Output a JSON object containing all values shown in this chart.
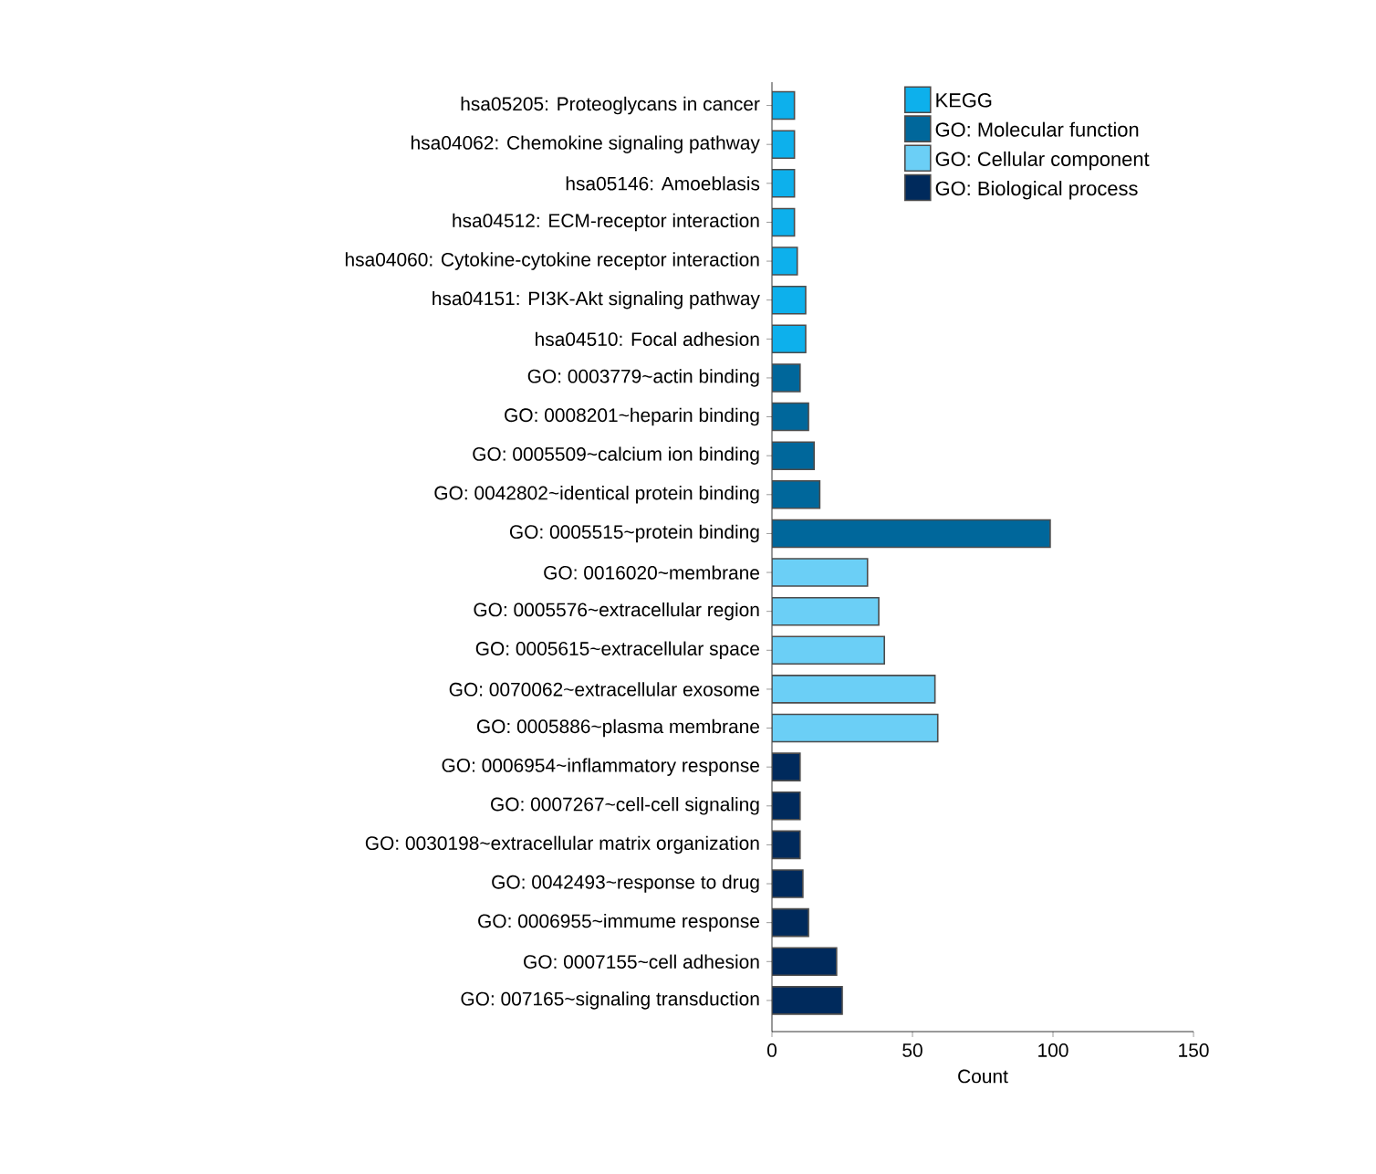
{
  "chart_data": {
    "type": "bar",
    "orientation": "horizontal",
    "xlabel": "Count",
    "xlim": [
      0,
      150
    ],
    "xticks": [
      0,
      50,
      100,
      150
    ],
    "legend": "top right",
    "grid": false,
    "categories": [
      "hsa05205: Proteoglycans in cancer",
      "hsa04062: Chemokine signaling pathway",
      "hsa05146: Amoeblasis",
      "hsa04512: ECM-receptor interaction",
      "hsa04060: Cytokine-cytokine receptor interaction",
      "hsa04151: PI3K-Akt signaling pathway",
      "hsa04510: Focal adhesion",
      "GO: 0003779~actin binding",
      "GO: 0008201~heparin binding",
      "GO: 0005509~calcium ion binding",
      "GO: 0042802~identical protein binding",
      "GO: 0005515~protein binding",
      "GO: 0016020~membrane",
      "GO: 0005576~extracellular region",
      "GO: 0005615~extracellular space",
      "GO: 0070062~extracellular exosome",
      "GO: 0005886~plasma membrane",
      "GO: 0006954~inflammatory response",
      "GO: 0007267~cell-cell signaling",
      "GO: 0030198~extracellular matrix organization",
      "GO: 0042493~response to drug",
      "GO: 0006955~immume response",
      "GO: 0007155~cell adhesion",
      "GO: 007165~signaling transduction"
    ],
    "series": [
      {
        "name": "KEGG",
        "color": "#0db0ec",
        "values": [
          8,
          8,
          8,
          8,
          9,
          12,
          12,
          null,
          null,
          null,
          null,
          null,
          null,
          null,
          null,
          null,
          null,
          null,
          null,
          null,
          null,
          null,
          null,
          null
        ]
      },
      {
        "name": "GO: Molecular function",
        "color": "#00679b",
        "values": [
          null,
          null,
          null,
          null,
          null,
          null,
          null,
          10,
          13,
          15,
          17,
          99,
          null,
          null,
          null,
          null,
          null,
          null,
          null,
          null,
          null,
          null,
          null,
          null
        ]
      },
      {
        "name": "GO: Cellular component",
        "color": "#6bcff6",
        "values": [
          null,
          null,
          null,
          null,
          null,
          null,
          null,
          null,
          null,
          null,
          null,
          null,
          34,
          38,
          40,
          58,
          59,
          null,
          null,
          null,
          null,
          null,
          null,
          null
        ]
      },
      {
        "name": "GO: Biological process",
        "color": "#002a5c",
        "values": [
          null,
          null,
          null,
          null,
          null,
          null,
          null,
          null,
          null,
          null,
          null,
          null,
          null,
          null,
          null,
          null,
          null,
          10,
          10,
          10,
          11,
          13,
          23,
          25
        ]
      }
    ]
  }
}
